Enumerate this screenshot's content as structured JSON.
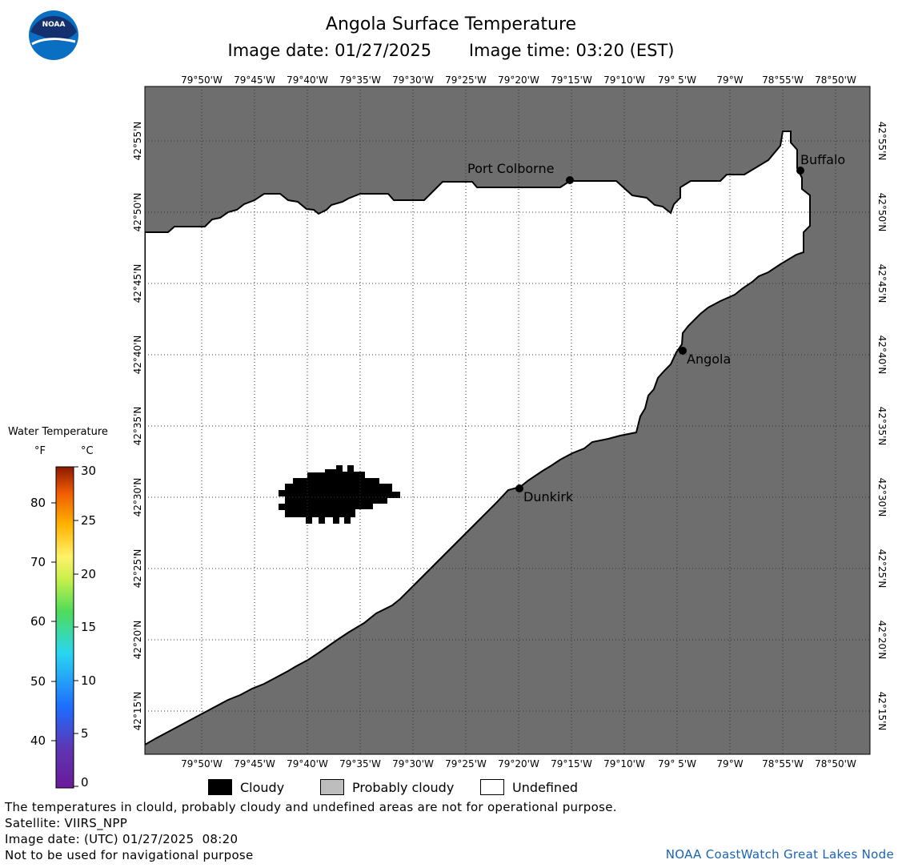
{
  "header": {
    "title": "Angola Surface Temperature",
    "image_date": "Image date: 01/27/2025",
    "image_time": "Image time: 03:20 (EST)",
    "logo_text": "NOAA"
  },
  "map": {
    "lon_labels": [
      "79°50'W",
      "79°45'W",
      "79°40'W",
      "79°35'W",
      "79°30'W",
      "79°25'W",
      "79°20'W",
      "79°15'W",
      "79°10'W",
      "79° 5'W",
      "79°W",
      "78°55'W",
      "78°50'W"
    ],
    "lat_labels": [
      "42°55'N",
      "42°50'N",
      "42°45'N",
      "42°40'N",
      "42°35'N",
      "42°30'N",
      "42°25'N",
      "42°20'N",
      "42°15'N"
    ],
    "cities": [
      {
        "name": "Port Colborne"
      },
      {
        "name": "Buffalo"
      },
      {
        "name": "Angola"
      },
      {
        "name": "Dunkirk"
      }
    ],
    "land_color": "#6e6e6e",
    "water_color": "#ffffff",
    "cloud_color": "#000000"
  },
  "legend": {
    "title": "Water Temperature",
    "unit_f": "°F",
    "unit_c": "°C",
    "f_labels": [
      "80",
      "70",
      "60",
      "50",
      "40"
    ],
    "c_labels": [
      "30",
      "25",
      "20",
      "15",
      "10",
      "5",
      "0"
    ]
  },
  "cloud_legend": {
    "cloudy": "Cloudy",
    "probably_cloudy": "Probably cloudy",
    "undefined": "Undefined"
  },
  "footer": {
    "disclaimer": "The temperatures in clould, probably cloudy and undefined areas are not for operational purpose.",
    "satellite": "Satellite: VIIRS_NPP",
    "utc_date": "Image date: (UTC) 01/27/2025  08:20",
    "nav_warning": "Not to be used for navigational purpose",
    "credit": "NOAA CoastWatch Great Lakes Node"
  }
}
